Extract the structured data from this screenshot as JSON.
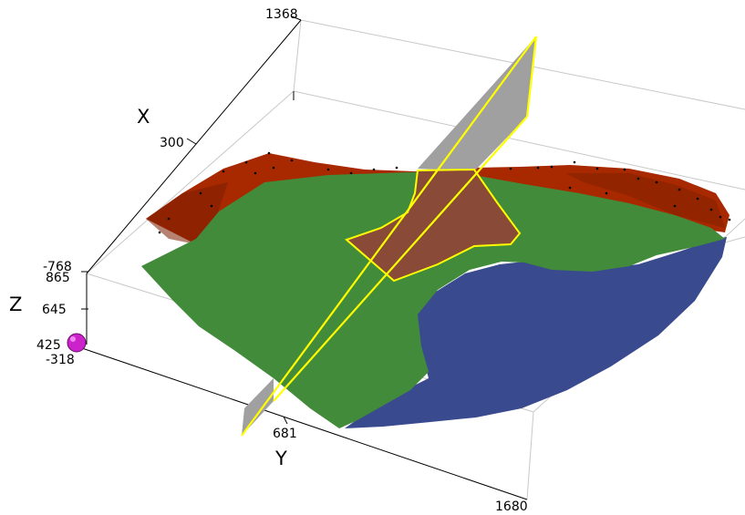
{
  "axes": {
    "x": {
      "label": "X",
      "ticks": [
        "1368",
        "300"
      ]
    },
    "y": {
      "label": "Y",
      "ticks": [
        "681",
        "1680"
      ]
    },
    "z": {
      "label": "Z",
      "ticks": [
        "-768",
        "865",
        "645",
        "425",
        "-318"
      ]
    }
  },
  "colors": {
    "background": "#ffffff",
    "box_edges": "#c8c8c8",
    "upper_surface": "#a82800",
    "green_surface": "#428b3a",
    "blue_surface": "#3a4a8e",
    "section_plane": "#a0a0a0",
    "plane_outline": "#ffff00",
    "intersection_patch": "#8a4a38",
    "marker": "#cc22cc"
  },
  "icons": {
    "marker": "sphere-marker-icon"
  }
}
